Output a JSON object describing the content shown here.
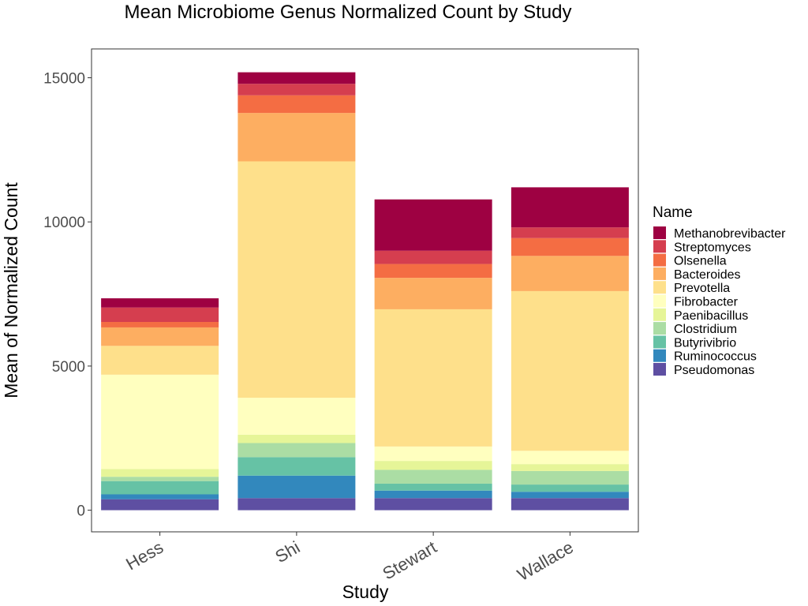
{
  "chart_data": {
    "type": "bar",
    "stacked": true,
    "title": "Mean Microbiome Genus Normalized Count by Study",
    "xlabel": "Study",
    "ylabel": "Mean of Normalized Count",
    "ylim": [
      -750,
      16000
    ],
    "yticks": [
      0,
      5000,
      10000,
      15000
    ],
    "yticks_labels": [
      "0",
      "5000",
      "10000",
      "15000"
    ],
    "grid": false,
    "legend_position": "right",
    "legend_title": "Name",
    "categories": [
      "Hess",
      "Shi",
      "Stewart",
      "Wallace"
    ],
    "series": [
      {
        "name": "Pseudomonas",
        "color": "#5E4FA2",
        "values": [
          380,
          420,
          420,
          420
        ]
      },
      {
        "name": "Ruminococcus",
        "color": "#3288BD",
        "values": [
          170,
          780,
          260,
          220
        ]
      },
      {
        "name": "Butyrivibrio",
        "color": "#66C2A5",
        "values": [
          460,
          640,
          240,
          250
        ]
      },
      {
        "name": "Clostridium",
        "color": "#ABDDA4",
        "values": [
          150,
          490,
          480,
          470
        ]
      },
      {
        "name": "Paenibacillus",
        "color": "#E6F598",
        "values": [
          270,
          290,
          310,
          240
        ]
      },
      {
        "name": "Fibrobacter",
        "color": "#FFFFBF",
        "values": [
          3270,
          1280,
          500,
          460
        ]
      },
      {
        "name": "Prevotella",
        "color": "#FEE08B",
        "values": [
          1000,
          8200,
          4760,
          5540
        ]
      },
      {
        "name": "Bacteroides",
        "color": "#FDAE61",
        "values": [
          640,
          1680,
          1090,
          1220
        ]
      },
      {
        "name": "Olsenella",
        "color": "#F46D43",
        "values": [
          190,
          610,
          480,
          620
        ]
      },
      {
        "name": "Streptomyces",
        "color": "#D53E4F",
        "values": [
          500,
          400,
          460,
          370
        ]
      },
      {
        "name": "Methanobrevibacter",
        "color": "#9E0142",
        "values": [
          320,
          400,
          1780,
          1390
        ]
      }
    ]
  }
}
